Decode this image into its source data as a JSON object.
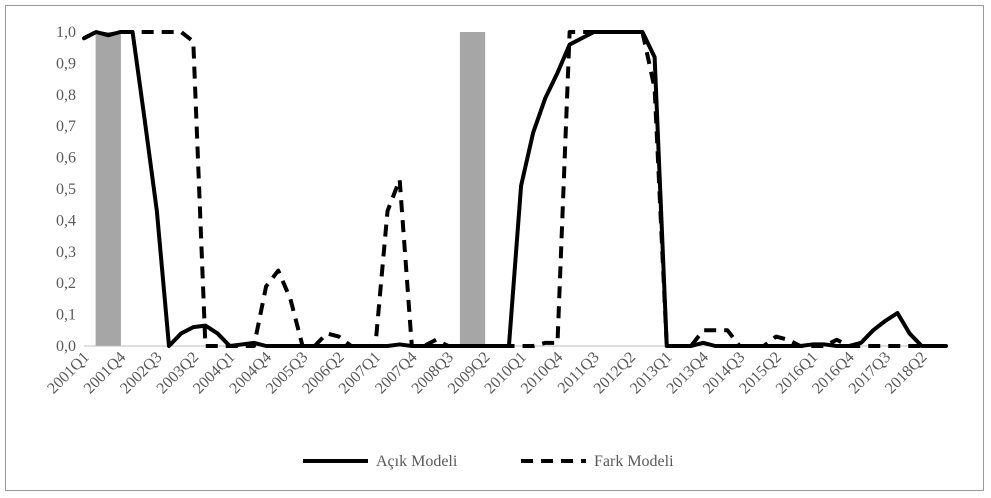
{
  "chart_data": {
    "type": "line",
    "title": "",
    "xlabel": "",
    "ylabel": "",
    "ylim": [
      0,
      1
    ],
    "y_ticks": [
      "0,0",
      "0,1",
      "0,2",
      "0,3",
      "0,4",
      "0,5",
      "0,6",
      "0,7",
      "0,8",
      "0,9",
      "1,0"
    ],
    "x": [
      "2001Q1",
      "2001Q2",
      "2001Q3",
      "2001Q4",
      "2002Q1",
      "2002Q2",
      "2002Q3",
      "2002Q4",
      "2003Q1",
      "2003Q2",
      "2003Q3",
      "2003Q4",
      "2004Q1",
      "2004Q2",
      "2004Q3",
      "2004Q4",
      "2005Q1",
      "2005Q2",
      "2005Q3",
      "2005Q4",
      "2006Q1",
      "2006Q2",
      "2006Q3",
      "2006Q4",
      "2007Q1",
      "2007Q2",
      "2007Q3",
      "2007Q4",
      "2008Q1",
      "2008Q2",
      "2008Q3",
      "2008Q4",
      "2009Q1",
      "2009Q2",
      "2009Q3",
      "2009Q4",
      "2010Q1",
      "2010Q2",
      "2010Q3",
      "2010Q4",
      "2011Q1",
      "2011Q2",
      "2011Q3",
      "2011Q4",
      "2012Q1",
      "2012Q2",
      "2012Q3",
      "2012Q4",
      "2013Q1",
      "2013Q2",
      "2013Q3",
      "2013Q4",
      "2014Q1",
      "2014Q2",
      "2014Q3",
      "2014Q4",
      "2015Q1",
      "2015Q2",
      "2015Q3",
      "2015Q4",
      "2016Q1",
      "2016Q2",
      "2016Q3",
      "2016Q4",
      "2017Q1",
      "2017Q2",
      "2017Q3",
      "2017Q4",
      "2018Q1",
      "2018Q2",
      "2018Q3",
      "2018Q4"
    ],
    "x_tick_labels": [
      "2001Q1",
      "2001Q4",
      "2002Q3",
      "2003Q2",
      "2004Q1",
      "2004Q4",
      "2005Q3",
      "2006Q2",
      "2007Q1",
      "2007Q4",
      "2008Q3",
      "2009Q2",
      "2010Q1",
      "2010Q4",
      "2011Q3",
      "2012Q2",
      "2013Q1",
      "2013Q4",
      "2014Q3",
      "2015Q2",
      "2016Q1",
      "2016Q4",
      "2017Q3",
      "2018Q2"
    ],
    "shaded_periods": [
      {
        "start": "2001Q2",
        "end": "2001Q4"
      },
      {
        "start": "2008Q4",
        "end": "2009Q2"
      }
    ],
    "grid": "horizontal",
    "legend_position": "bottom",
    "series": [
      {
        "name": "Açık Modeli",
        "style": "solid",
        "values": [
          0.98,
          1.0,
          0.99,
          1.0,
          1.0,
          0.72,
          0.43,
          0.0,
          0.04,
          0.06,
          0.065,
          0.04,
          0.0,
          0.005,
          0.01,
          0.0,
          0.0,
          0.0,
          0.0,
          0.0,
          0.0,
          0.0,
          0.0,
          0.0,
          0.0,
          0.0,
          0.005,
          0.0,
          0.0,
          0.0,
          0.0,
          0.0,
          0.0,
          0.0,
          0.0,
          0.0,
          0.51,
          0.68,
          0.79,
          0.87,
          0.96,
          0.98,
          1.0,
          1.0,
          1.0,
          1.0,
          1.0,
          0.92,
          0.0,
          0.0,
          0.0,
          0.01,
          0.0,
          0.0,
          0.0,
          0.0,
          0.0,
          0.0,
          0.0,
          0.0,
          0.005,
          0.005,
          0.0,
          0.0,
          0.01,
          0.05,
          0.08,
          0.105,
          0.04,
          0.0,
          0.0,
          0.0
        ]
      },
      {
        "name": "Fark Modeli",
        "style": "dashed",
        "values": [
          0.98,
          1.0,
          0.99,
          1.0,
          1.0,
          1.0,
          1.0,
          1.0,
          1.0,
          0.97,
          0.0,
          0.0,
          0.0,
          0.0,
          0.0,
          0.19,
          0.24,
          0.15,
          0.0,
          0.0,
          0.04,
          0.03,
          0.0,
          0.0,
          0.0,
          0.43,
          0.53,
          0.0,
          0.0,
          0.02,
          0.0,
          0.0,
          0.0,
          0.0,
          0.0,
          0.0,
          0.0,
          0.0,
          0.01,
          0.01,
          1.0,
          1.0,
          1.0,
          1.0,
          1.0,
          1.0,
          1.0,
          0.82,
          0.0,
          0.0,
          0.0,
          0.05,
          0.05,
          0.05,
          0.0,
          0.0,
          0.0,
          0.03,
          0.02,
          0.0,
          0.0,
          0.0,
          0.02,
          0.0,
          0.0,
          0.0,
          0.0,
          0.0,
          0.0,
          0.0,
          0.0,
          0.0
        ]
      }
    ],
    "colors": {
      "line": "#000000",
      "shade": "#a6a6a6",
      "axis": "#bfbfbf",
      "text": "#595959"
    }
  }
}
